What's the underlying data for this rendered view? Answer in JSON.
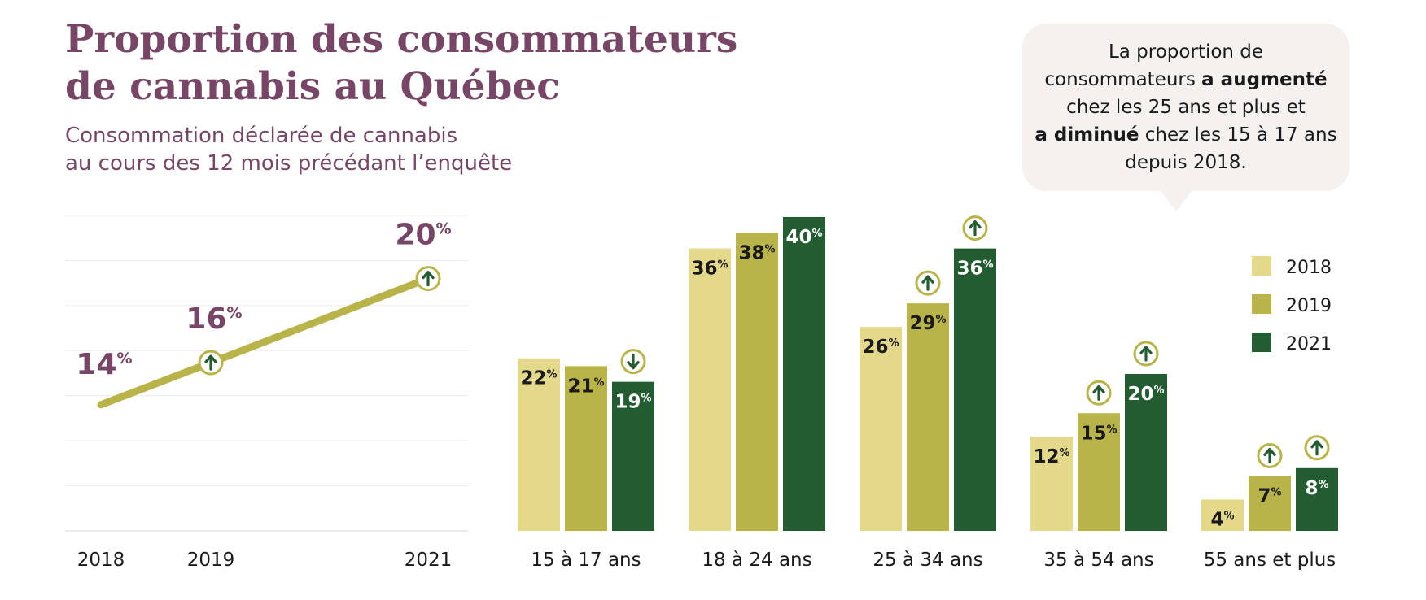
{
  "header": {
    "title_line1": "Proportion des consommateurs",
    "title_line2": "de cannabis au Québec",
    "subtitle_line1": "Consommation déclarée de cannabis",
    "subtitle_line2": "au cours des 12 mois précédant l’enquête"
  },
  "callout": {
    "line1": "La proportion de",
    "line2_prefix": "consommateurs ",
    "line2_bold": "a augmenté",
    "line3": "chez les 25 ans et plus et",
    "line4_bold": "a diminué",
    "line4_suffix": " chez les 15 à 17 ans",
    "line5": "depuis 2018."
  },
  "colors": {
    "2018": "#e4d88b",
    "2019": "#b8b449",
    "2021": "#245c32",
    "line": "#b8b449",
    "title": "#774566",
    "trend_arrow": "#245c32"
  },
  "chart_data": [
    {
      "type": "line",
      "title": "",
      "x": [
        "2018",
        "2019",
        "2021"
      ],
      "series": [
        {
          "values": [
            14,
            16,
            20
          ],
          "trend": [
            "none",
            "up",
            "up"
          ]
        }
      ],
      "unit": "%",
      "ylim": [
        8,
        23
      ],
      "grid": true
    },
    {
      "type": "bar",
      "title": "",
      "categories": [
        "15 à 17 ans",
        "18 à 24 ans",
        "25 à 34 ans",
        "35 à 54 ans",
        "55 ans et plus"
      ],
      "series": [
        {
          "name": "2018",
          "values": [
            22,
            36,
            26,
            12,
            4
          ],
          "trend": [
            "none",
            "none",
            "none",
            "none",
            "none"
          ]
        },
        {
          "name": "2019",
          "values": [
            21,
            38,
            29,
            15,
            7
          ],
          "trend": [
            "none",
            "none",
            "up",
            "up",
            "up"
          ]
        },
        {
          "name": "2021",
          "values": [
            19,
            40,
            36,
            20,
            8
          ],
          "trend": [
            "down",
            "none",
            "up",
            "up",
            "up"
          ]
        }
      ],
      "unit": "%",
      "ylim": [
        0,
        40
      ],
      "legend": "right"
    }
  ]
}
